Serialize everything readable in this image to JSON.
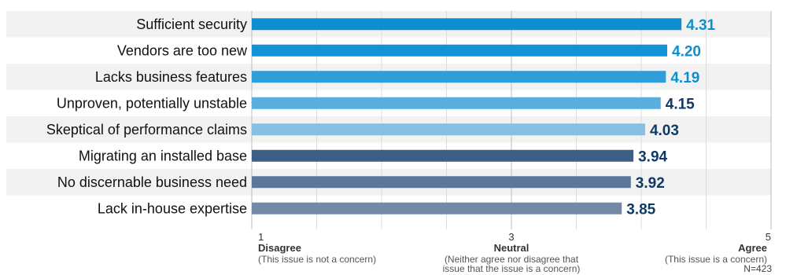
{
  "chart_data": {
    "type": "bar",
    "orientation": "horizontal",
    "categories": [
      "Sufficient security",
      "Vendors are too new",
      "Lacks business features",
      "Unproven, potentially unstable",
      "Skeptical of performance claims",
      "Migrating an installed base",
      "No discernable business need",
      "Lack in-house expertise"
    ],
    "values": [
      4.31,
      4.2,
      4.19,
      4.15,
      4.03,
      3.94,
      3.92,
      3.85
    ],
    "value_labels": [
      "4.31",
      "4.20",
      "4.19",
      "4.15",
      "4.03",
      "3.94",
      "3.92",
      "3.85"
    ],
    "bar_colors": [
      "#0b8fd1",
      "#1193d4",
      "#2f9ed8",
      "#5aaedd",
      "#86bfe4",
      "#3d5f87",
      "#5a7799",
      "#7489a8"
    ],
    "label_colors": [
      "#0b8fd1",
      "#0b8fd1",
      "#0b8fd1",
      "#0d3a66",
      "#0d3a66",
      "#0d3a66",
      "#0d3a66",
      "#0d3a66"
    ],
    "xlim": [
      1,
      5
    ],
    "grid": true,
    "ticks": [
      "1",
      "3",
      "5"
    ],
    "anchors": [
      {
        "title": "Disagree",
        "desc": [
          "(This issue is not a concern)"
        ]
      },
      {
        "title": "Neutral",
        "desc": [
          "(Neither agree nor disagree that",
          "issue that the issue is a concern)"
        ]
      },
      {
        "title": "Agree",
        "desc": [
          "(This issue is a concern)"
        ]
      }
    ],
    "note": "N=423"
  }
}
